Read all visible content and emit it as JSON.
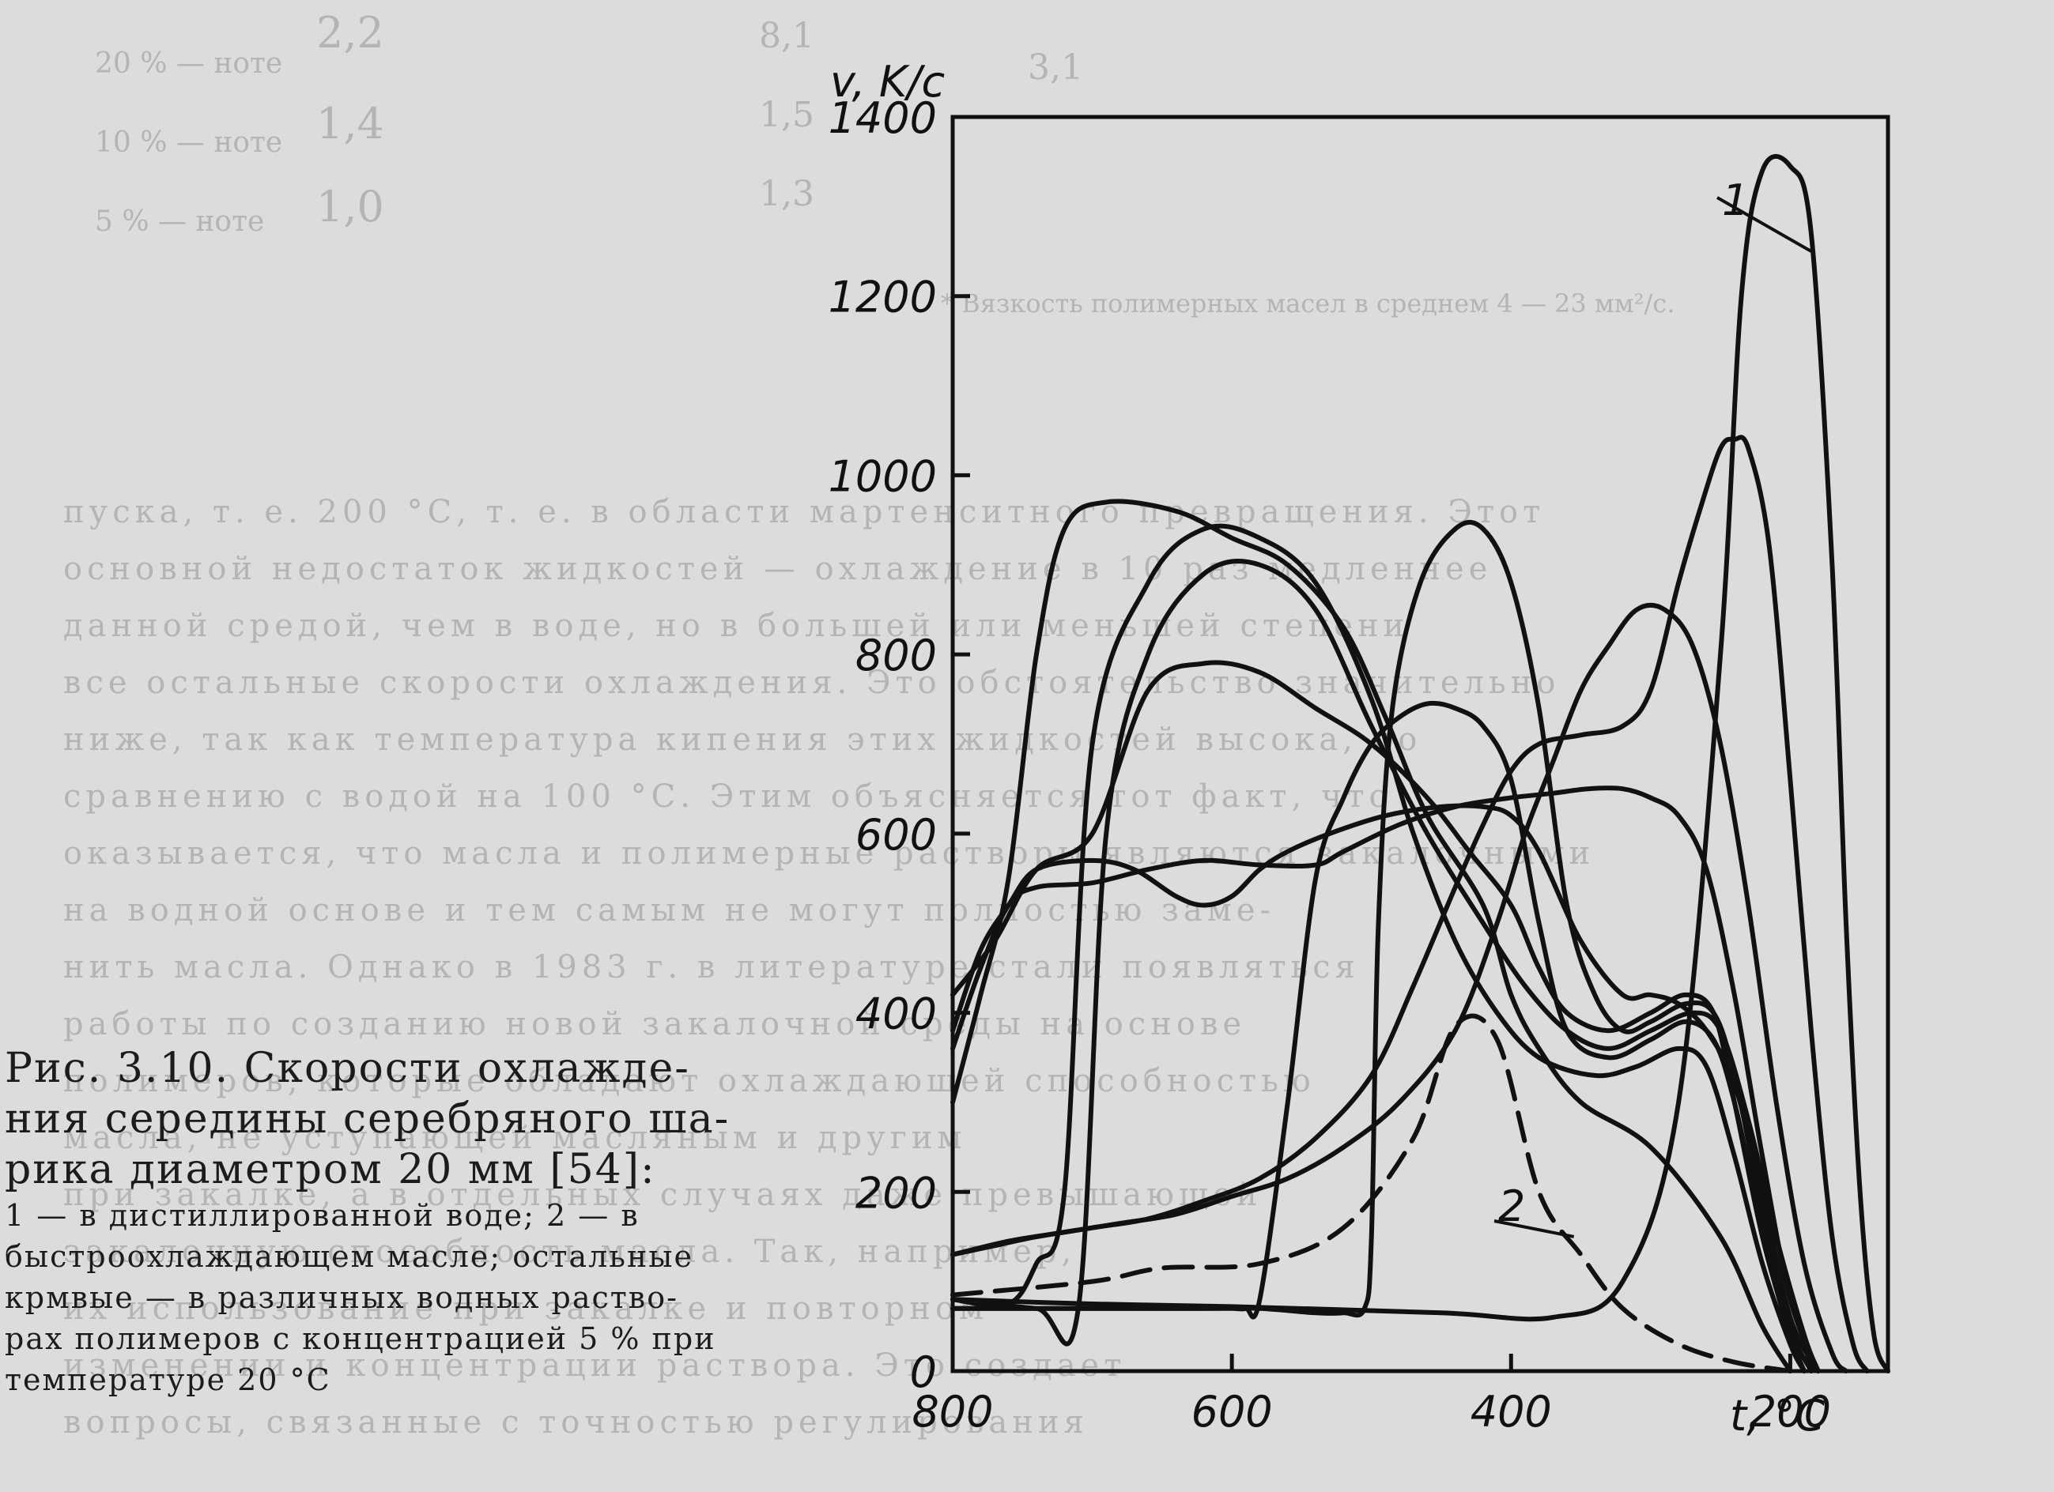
{
  "background_text": {
    "rows": [
      "2,2",
      "1,4",
      "1,0"
    ],
    "side_labels": [
      "20 % — ноте",
      "10 % — ноте",
      "5 % — ноте"
    ],
    "col_a": [
      "8,1",
      "1,5",
      "1,3"
    ],
    "col_b": [
      "3,1",
      "",
      ""
    ],
    "footnote": "* Вязкость полимерных масел в среднем 4 — 23 мм²/с.",
    "paragraph_lines": [
      "пуска, т. е. 200 °С, т. е. в области мартенситного превращения. Этот",
      "основной недостаток жидкостей — охлаждение в 10 раз медленнее",
      "данной средой, чем в воде, но в большей или меньшей степени",
      "все остальные скорости охлаждения. Это обстоятельство значительно",
      "ниже, так как температура кипения этих жидкостей высока, по",
      "сравнению с водой на 100 °С. Этим объясняется тот факт, что",
      "оказывается, что масла и полимерные растворы являются закалочными",
      "на водной основе и тем самым не могут полностью заме-",
      "нить масла. Однако в 1983 г. в литературе стали появляться",
      "работы по созданию новой закалочной среды на основе",
      "полимеров, которые обладают охлаждающей способностью",
      "масла, не уступающей масляным и другим",
      "при закалке, а в отдельных случаях даже превышающей",
      "закалочную способность масла. Так, например,",
      "их использование при закалке и повторном",
      "изменении и концентрации раствора. Это создает",
      "вопросы, связанные с точностью регулирования"
    ]
  },
  "caption": {
    "title": "Рис. 3.10. Скорости охлажде-\nния середины серебряного ша-\nрика диаметром 20 мм [54]:",
    "body": "1 — в дистиллированной воде; 2 — в\nбыстроохлаждающем масле; остальные\nкрмвые — в различных водных раство-\nрах полимеров с концентрацией 5 % при\nтемпературе 20 °С"
  },
  "chart_data": {
    "type": "line",
    "title": "",
    "xlabel": "t, °C",
    "ylabel": "v, K/c",
    "xlim": [
      800,
      130
    ],
    "ylim": [
      0,
      1400
    ],
    "x_reversed": true,
    "x_ticks": [
      800,
      600,
      400,
      200
    ],
    "y_ticks": [
      0,
      200,
      400,
      600,
      800,
      1000,
      1200,
      1400
    ],
    "grid": false,
    "legend": "none",
    "annotations": [
      "1",
      "2"
    ],
    "series": [
      {
        "name": "1",
        "style": "solid",
        "points": [
          [
            800,
            80
          ],
          [
            700,
            75
          ],
          [
            600,
            72
          ],
          [
            450,
            65
          ],
          [
            370,
            60
          ],
          [
            320,
            100
          ],
          [
            280,
            300
          ],
          [
            250,
            800
          ],
          [
            235,
            1200
          ],
          [
            220,
            1340
          ],
          [
            200,
            1345
          ],
          [
            185,
            1270
          ],
          [
            170,
            900
          ],
          [
            160,
            500
          ],
          [
            150,
            200
          ],
          [
            140,
            40
          ],
          [
            130,
            0
          ]
        ]
      },
      {
        "name": "2",
        "style": "dashed",
        "points": [
          [
            800,
            85
          ],
          [
            700,
            100
          ],
          [
            650,
            115
          ],
          [
            580,
            120
          ],
          [
            520,
            160
          ],
          [
            470,
            260
          ],
          [
            440,
            385
          ],
          [
            410,
            370
          ],
          [
            380,
            200
          ],
          [
            350,
            130
          ],
          [
            320,
            70
          ],
          [
            280,
            30
          ],
          [
            240,
            10
          ],
          [
            200,
            0
          ]
        ]
      },
      {
        "name": "",
        "style": "solid",
        "points": [
          [
            800,
            300
          ],
          [
            780,
            420
          ],
          [
            760,
            550
          ],
          [
            740,
            800
          ],
          [
            720,
            940
          ],
          [
            690,
            970
          ],
          [
            640,
            960
          ],
          [
            600,
            930
          ],
          [
            560,
            900
          ],
          [
            520,
            830
          ],
          [
            490,
            730
          ],
          [
            460,
            620
          ],
          [
            420,
            520
          ],
          [
            400,
            420
          ],
          [
            380,
            360
          ],
          [
            350,
            300
          ],
          [
            300,
            250
          ],
          [
            250,
            150
          ],
          [
            220,
            50
          ],
          [
            200,
            0
          ]
        ]
      },
      {
        "name": "",
        "style": "solid",
        "points": [
          [
            800,
            80
          ],
          [
            760,
            75
          ],
          [
            740,
            120
          ],
          [
            720,
            200
          ],
          [
            700,
            700
          ],
          [
            660,
            880
          ],
          [
            620,
            940
          ],
          [
            580,
            930
          ],
          [
            540,
            880
          ],
          [
            500,
            750
          ],
          [
            470,
            600
          ],
          [
            440,
            480
          ],
          [
            410,
            400
          ],
          [
            380,
            350
          ],
          [
            340,
            330
          ],
          [
            310,
            340
          ],
          [
            280,
            360
          ],
          [
            260,
            340
          ],
          [
            240,
            240
          ],
          [
            220,
            120
          ],
          [
            200,
            30
          ],
          [
            190,
            0
          ]
        ]
      },
      {
        "name": "",
        "style": "solid",
        "points": [
          [
            800,
            80
          ],
          [
            740,
            70
          ],
          [
            710,
            70
          ],
          [
            690,
            600
          ],
          [
            660,
            800
          ],
          [
            620,
            890
          ],
          [
            580,
            900
          ],
          [
            540,
            850
          ],
          [
            500,
            720
          ],
          [
            460,
            600
          ],
          [
            420,
            500
          ],
          [
            390,
            430
          ],
          [
            360,
            380
          ],
          [
            330,
            360
          ],
          [
            300,
            380
          ],
          [
            270,
            400
          ],
          [
            250,
            380
          ],
          [
            230,
            280
          ],
          [
            210,
            150
          ],
          [
            190,
            40
          ],
          [
            180,
            0
          ]
        ]
      },
      {
        "name": "",
        "style": "solid",
        "points": [
          [
            800,
            420
          ],
          [
            770,
            480
          ],
          [
            740,
            560
          ],
          [
            700,
            600
          ],
          [
            660,
            760
          ],
          [
            620,
            790
          ],
          [
            580,
            780
          ],
          [
            540,
            740
          ],
          [
            500,
            700
          ],
          [
            460,
            640
          ],
          [
            430,
            580
          ],
          [
            400,
            520
          ],
          [
            380,
            450
          ],
          [
            360,
            400
          ],
          [
            330,
            380
          ],
          [
            300,
            400
          ],
          [
            275,
            420
          ],
          [
            255,
            400
          ],
          [
            240,
            300
          ],
          [
            220,
            150
          ],
          [
            200,
            40
          ],
          [
            190,
            0
          ]
        ]
      },
      {
        "name": "",
        "style": "solid",
        "points": [
          [
            800,
            70
          ],
          [
            700,
            70
          ],
          [
            640,
            70
          ],
          [
            620,
            70
          ],
          [
            600,
            70
          ],
          [
            590,
            70
          ],
          [
            580,
            80
          ],
          [
            560,
            300
          ],
          [
            540,
            550
          ],
          [
            520,
            640
          ],
          [
            500,
            700
          ],
          [
            480,
            730
          ],
          [
            460,
            745
          ],
          [
            440,
            740
          ],
          [
            420,
            720
          ],
          [
            400,
            660
          ],
          [
            380,
            500
          ],
          [
            360,
            380
          ],
          [
            330,
            350
          ],
          [
            300,
            370
          ],
          [
            275,
            390
          ],
          [
            255,
            370
          ],
          [
            240,
            300
          ],
          [
            220,
            160
          ],
          [
            200,
            40
          ],
          [
            180,
            0
          ]
        ]
      },
      {
        "name": "",
        "style": "solid",
        "points": [
          [
            800,
            70
          ],
          [
            700,
            70
          ],
          [
            620,
            70
          ],
          [
            580,
            70
          ],
          [
            540,
            65
          ],
          [
            520,
            65
          ],
          [
            505,
            70
          ],
          [
            500,
            150
          ],
          [
            495,
            500
          ],
          [
            485,
            740
          ],
          [
            465,
            880
          ],
          [
            440,
            940
          ],
          [
            420,
            940
          ],
          [
            400,
            880
          ],
          [
            380,
            740
          ],
          [
            360,
            520
          ],
          [
            340,
            420
          ],
          [
            320,
            380
          ],
          [
            300,
            390
          ],
          [
            275,
            410
          ],
          [
            255,
            400
          ],
          [
            240,
            330
          ],
          [
            220,
            180
          ],
          [
            200,
            50
          ],
          [
            185,
            0
          ]
        ]
      },
      {
        "name": "",
        "style": "solid",
        "points": [
          [
            800,
            360
          ],
          [
            780,
            450
          ],
          [
            760,
            520
          ],
          [
            740,
            540
          ],
          [
            700,
            545
          ],
          [
            660,
            560
          ],
          [
            620,
            570
          ],
          [
            580,
            565
          ],
          [
            540,
            565
          ],
          [
            520,
            580
          ],
          [
            480,
            610
          ],
          [
            440,
            630
          ],
          [
            400,
            640
          ],
          [
            370,
            645
          ],
          [
            345,
            650
          ],
          [
            320,
            650
          ],
          [
            300,
            640
          ],
          [
            280,
            620
          ],
          [
            260,
            560
          ],
          [
            240,
            420
          ],
          [
            220,
            240
          ],
          [
            200,
            80
          ],
          [
            180,
            0
          ]
        ]
      },
      {
        "name": "",
        "style": "solid",
        "points": [
          [
            800,
            380
          ],
          [
            780,
            470
          ],
          [
            760,
            520
          ],
          [
            740,
            560
          ],
          [
            700,
            570
          ],
          [
            670,
            560
          ],
          [
            640,
            530
          ],
          [
            620,
            520
          ],
          [
            600,
            530
          ],
          [
            580,
            560
          ],
          [
            560,
            580
          ],
          [
            530,
            600
          ],
          [
            490,
            620
          ],
          [
            450,
            630
          ],
          [
            420,
            630
          ],
          [
            400,
            620
          ],
          [
            380,
            580
          ],
          [
            350,
            480
          ],
          [
            320,
            420
          ],
          [
            300,
            420
          ],
          [
            280,
            410
          ],
          [
            260,
            380
          ],
          [
            240,
            320
          ],
          [
            220,
            200
          ],
          [
            200,
            60
          ],
          [
            180,
            0
          ]
        ]
      },
      {
        "name": "",
        "style": "solid",
        "points": [
          [
            800,
            130
          ],
          [
            760,
            145
          ],
          [
            720,
            155
          ],
          [
            680,
            165
          ],
          [
            640,
            175
          ],
          [
            600,
            195
          ],
          [
            560,
            215
          ],
          [
            520,
            250
          ],
          [
            480,
            300
          ],
          [
            440,
            380
          ],
          [
            410,
            500
          ],
          [
            390,
            600
          ],
          [
            370,
            680
          ],
          [
            350,
            760
          ],
          [
            330,
            810
          ],
          [
            310,
            850
          ],
          [
            290,
            850
          ],
          [
            270,
            810
          ],
          [
            250,
            700
          ],
          [
            230,
            520
          ],
          [
            210,
            300
          ],
          [
            190,
            120
          ],
          [
            170,
            20
          ],
          [
            160,
            0
          ]
        ]
      },
      {
        "name": "",
        "style": "solid",
        "points": [
          [
            800,
            130
          ],
          [
            770,
            140
          ],
          [
            740,
            150
          ],
          [
            700,
            160
          ],
          [
            660,
            170
          ],
          [
            620,
            190
          ],
          [
            580,
            215
          ],
          [
            540,
            260
          ],
          [
            500,
            330
          ],
          [
            470,
            430
          ],
          [
            440,
            540
          ],
          [
            420,
            610
          ],
          [
            400,
            670
          ],
          [
            380,
            700
          ],
          [
            350,
            710
          ],
          [
            320,
            720
          ],
          [
            300,
            760
          ],
          [
            280,
            880
          ],
          [
            265,
            960
          ],
          [
            250,
            1030
          ],
          [
            240,
            1040
          ],
          [
            230,
            1030
          ],
          [
            215,
            920
          ],
          [
            200,
            660
          ],
          [
            185,
            380
          ],
          [
            170,
            150
          ],
          [
            155,
            30
          ],
          [
            145,
            0
          ]
        ]
      }
    ]
  }
}
